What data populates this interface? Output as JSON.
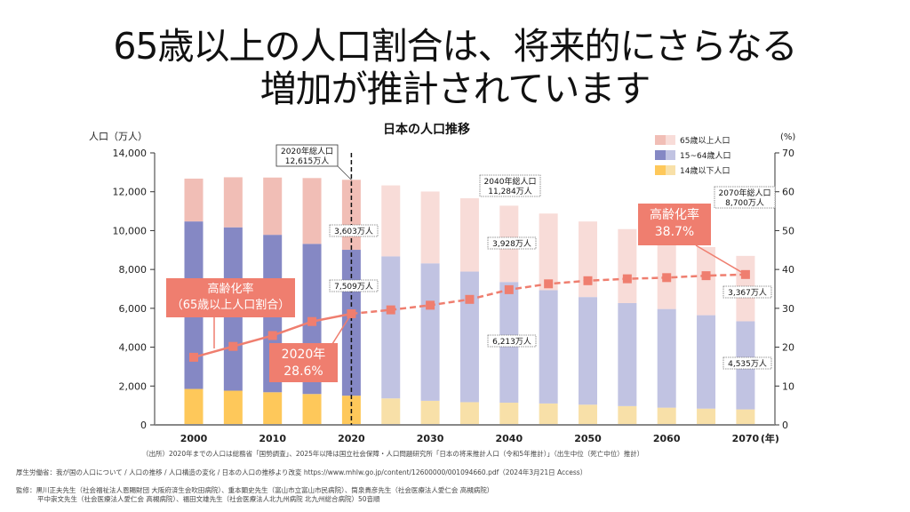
{
  "slide": {
    "title_line1": "65歳以上の人口割合は、将来的にさらなる",
    "title_line2": "増加が推計されています"
  },
  "chart_data": {
    "type": "bar",
    "stacked": true,
    "title": "日本の人口推移",
    "ylabel": "人口（万人）",
    "y2label": "(%)",
    "xlabel_suffix": "(年)",
    "ylim": [
      0,
      14000
    ],
    "y2lim": [
      0,
      70
    ],
    "yticks": [
      "0",
      "2,000",
      "4,000",
      "6,000",
      "8,000",
      "10,000",
      "12,000",
      "14,000"
    ],
    "yticks_values": [
      0,
      2000,
      4000,
      6000,
      8000,
      10000,
      12000,
      14000
    ],
    "y2ticks": [
      "0",
      "10",
      "20",
      "30",
      "40",
      "50",
      "60",
      "70"
    ],
    "y2ticks_values": [
      0,
      10,
      20,
      30,
      40,
      50,
      60,
      70
    ],
    "x": [
      2000,
      2005,
      2010,
      2015,
      2020,
      2025,
      2030,
      2035,
      2040,
      2045,
      2050,
      2055,
      2060,
      2065,
      2070
    ],
    "xtick_labels": [
      "2000",
      "2010",
      "2020",
      "2030",
      "2040",
      "2050",
      "2060",
      "2070"
    ],
    "xtick_years": [
      2000,
      2010,
      2020,
      2030,
      2040,
      2050,
      2060,
      2070
    ],
    "projection_start": 2025,
    "series": [
      {
        "name": "14歳以下人口",
        "color_actual": "#fec85a",
        "color_projected": "#f8e0a8",
        "values": [
          1850,
          1760,
          1680,
          1590,
          1503,
          1363,
          1240,
          1169,
          1142,
          1102,
          1041,
          967,
          887,
          837,
          797
        ]
      },
      {
        "name": "15~64歳人口",
        "color_actual": "#8588c4",
        "color_projected": "#c1c3e2",
        "values": [
          8622,
          8409,
          8103,
          7728,
          7509,
          7310,
          7076,
          6722,
          6213,
          5832,
          5540,
          5302,
          5078,
          4809,
          4535
        ]
      },
      {
        "name": "65歳以上人口",
        "color_actual": "#f1beb6",
        "color_projected": "#f8dcd8",
        "values": [
          2204,
          2576,
          2948,
          3387,
          3603,
          3653,
          3696,
          3773,
          3928,
          3945,
          3888,
          3809,
          3644,
          3504,
          3367
        ]
      }
    ],
    "line_series": {
      "name": "高齢化率（65歳以上人口割合）",
      "axis": "right",
      "color": "#ef7e6f",
      "values": [
        17.4,
        20.2,
        23.0,
        26.6,
        28.6,
        29.6,
        30.8,
        32.3,
        34.8,
        36.3,
        37.1,
        37.6,
        37.9,
        38.4,
        38.7
      ]
    },
    "legend": {
      "placement": "top-right",
      "entries": [
        "65歳以上人口",
        "15~64歳人口",
        "14歳以下人口"
      ]
    },
    "annotations": {
      "total_2020": {
        "line1": "2020年総人口",
        "line2": "12,615万人"
      },
      "total_2040": {
        "line1": "2040年総人口",
        "line2": "11,284万人"
      },
      "total_2070": {
        "line1": "2070年総人口",
        "line2": "8,700万人"
      },
      "elderly_2020": "3,603万人",
      "working_2020": "7,509万人",
      "elderly_2040": "3,928万人",
      "working_2040": "6,213万人",
      "elderly_2070": "3,367万人",
      "working_2070": "4,535万人",
      "rate_label_line1": "高齢化率",
      "rate_label_line2": "（65歳以上人口割合）",
      "rate_2020_line1": "2020年",
      "rate_2020_line2": "28.6%",
      "rate_2070_line1": "高齢化率",
      "rate_2070_line2": "38.7%"
    }
  },
  "footnotes": {
    "source": "（出所）2020年までの人口は総務省「国勢調査」、2025年以降は国立社会保障・人口問題研究所「日本の将来推計人口（令和5年推計）」（出生中位（死亡中位）推計）",
    "reference": "厚生労働省：我が国の人口について / 人口の推移 / 人口構造の変化 / 日本の人口の推移より改変 https://www.mhlw.go.jp/content/12600000/001094660.pdf（2024年3月21日 Access）",
    "supervisors_line1": "監修：黒川正夫先生（社会福祉法人恩賜財団 大阪府済生会吹田病院）、重本顕史先生（富山市立富山市民病院）、筒泉貴彦先生（社会医療法人愛仁会 高槻病院）",
    "supervisors_line2": "平中崇文先生（社会医療法人愛仁会 高槻病院）、福田文雄先生（社会医療法人北九州病院 北九州総合病院）50音順"
  }
}
